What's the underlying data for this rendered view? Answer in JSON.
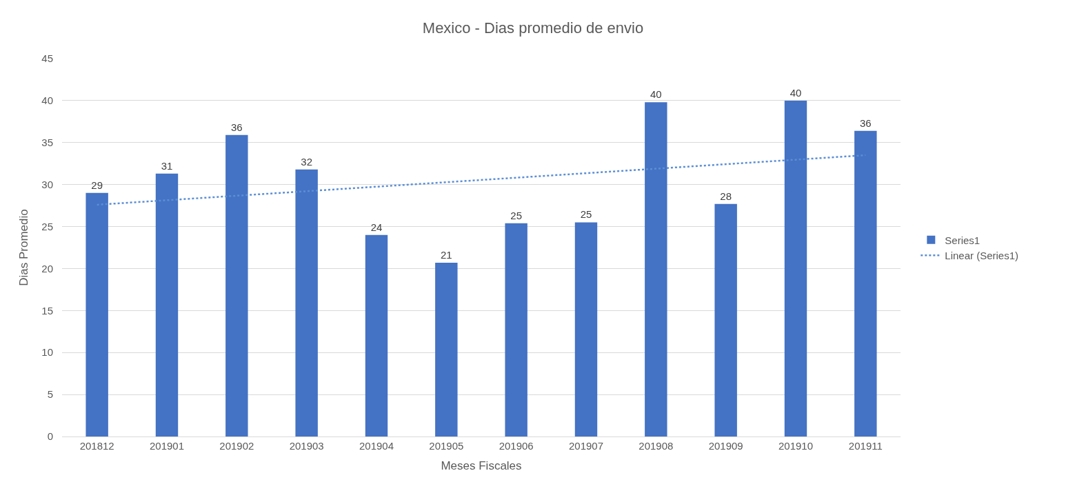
{
  "chart_data": {
    "type": "bar",
    "title": "Mexico - Dias promedio de envio",
    "xlabel": "Meses Fiscales",
    "ylabel": "Dias Promedio",
    "categories": [
      "201812",
      "201901",
      "201902",
      "201903",
      "201904",
      "201905",
      "201906",
      "201907",
      "201908",
      "201909",
      "201910",
      "201911"
    ],
    "series": [
      {
        "name": "Series1",
        "color": "#4472c4",
        "values": [
          29.0,
          31.3,
          35.9,
          31.8,
          24.0,
          20.7,
          25.4,
          25.5,
          39.8,
          27.7,
          40.0,
          36.4
        ],
        "value_labels": [
          "29",
          "31",
          "36",
          "32",
          "24",
          "21",
          "25",
          "25",
          "40",
          "28",
          "40",
          "36"
        ]
      },
      {
        "name": "Linear (Series1)",
        "type": "line",
        "color": "#5b8fd6",
        "line_style": "dotted",
        "marker": "none",
        "x": [
          "201812",
          "201911"
        ],
        "values": [
          27.6,
          33.5
        ]
      }
    ],
    "ylim": [
      0,
      45
    ],
    "yticks": [
      0,
      5,
      10,
      15,
      20,
      25,
      30,
      35,
      40,
      45
    ],
    "grid": "y",
    "legend": "right"
  }
}
